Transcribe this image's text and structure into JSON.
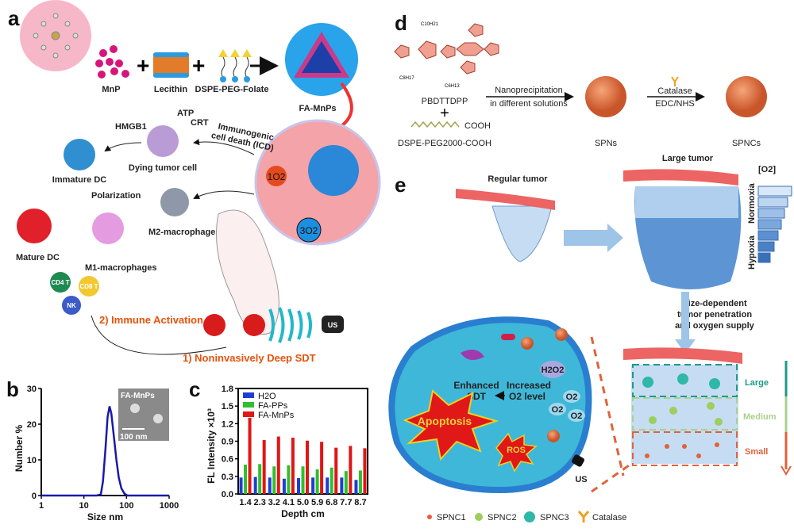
{
  "panels": {
    "a": {
      "label": "a",
      "components": [
        "MnP",
        "Lecithin",
        "DSPE-PEG-Folate"
      ],
      "product": "FA-MnPs",
      "cells": {
        "hmgb1": "HMGB1",
        "atp": "ATP",
        "crt": "CRT",
        "icd": [
          "Immunogenic",
          "cell death (ICD)"
        ],
        "dying": "Dying tumor cell",
        "immature_dc": "Immature DC",
        "polarization": "Polarization",
        "m2": "M2-macrophages",
        "mature_dc": "Mature DC",
        "m1": "M1-macrophages",
        "cd4": "CD4 T",
        "cd8": "CD8 T",
        "nk": "NK"
      },
      "singlet_oxygen": "1O2",
      "triplet_oxygen": "3O2",
      "us": "US",
      "step1": "1) Noninvasively Deep SDT",
      "step2": "2) Immune Activation"
    },
    "b": {
      "label": "b",
      "inset_label": "FA-MnPs",
      "scale_bar": "100 nm"
    },
    "c": {
      "label": "c"
    },
    "d": {
      "label": "d",
      "polymer": "PBDTTDPP",
      "plus": "+",
      "lipid": "DSPE-PEG2000-COOH",
      "cooh": "COOH",
      "step1": [
        "Nanoprecipitation",
        "in different solutions"
      ],
      "step2": [
        "Catalase",
        "EDC/NHS"
      ],
      "spns": "SPNs",
      "spncs": "SPNCs",
      "chem_labels": [
        "C8H17",
        "C10H21",
        "C6H13"
      ]
    },
    "e": {
      "label": "e",
      "regular": "Regular tumor",
      "large": "Large tumor",
      "o2": "[O2]",
      "normoxia": "Normoxia",
      "hypoxia": "Hypoxia",
      "size_dep": [
        "Size-dependent",
        "tumor penetration",
        "and oxygen supply"
      ],
      "zones": [
        "Large",
        "Medium",
        "Small"
      ],
      "h2o2": "H2O2",
      "increased": [
        "Increased",
        "O2 level"
      ],
      "enhanced": [
        "Enhanced",
        "SDT"
      ],
      "o2_bubble": "O2",
      "apoptosis": "Apoptosis",
      "ros": "ROS",
      "us": "US",
      "legend": [
        "SPNC1",
        "SPNC2",
        "SPNC3",
        "Catalase"
      ]
    }
  },
  "colors": {
    "blue_line": "#1a1aa8",
    "h2o": "#1f3fd0",
    "fa_pps": "#2fbf2f",
    "fa_mnps": "#e01515",
    "large": "#1e9a8a",
    "medium": "#a8d08d",
    "small": "#e0623a"
  },
  "chart_data": [
    {
      "type": "line",
      "title": "",
      "xlabel": "Size nm",
      "ylabel": "Number %",
      "xscale": "log",
      "xlim": [
        1,
        1000
      ],
      "ylim": [
        0,
        30
      ],
      "xticks": [
        "1",
        "10",
        "100",
        "1000"
      ],
      "yticks": [
        "0",
        "10",
        "20",
        "30"
      ],
      "x": [
        1,
        20,
        25,
        28,
        32,
        36,
        40,
        44,
        50,
        58,
        66,
        76,
        90,
        105,
        1000
      ],
      "y": [
        0,
        0,
        0.3,
        4,
        13,
        22,
        25,
        23,
        17,
        10,
        5,
        2,
        0.5,
        0,
        0
      ]
    },
    {
      "type": "bar",
      "title": "",
      "xlabel": "Depth cm",
      "ylabel": "FL Intensity ×10³",
      "ylim": [
        0,
        1.8
      ],
      "yticks": [
        "0.0",
        "0.3",
        "0.6",
        "0.9",
        "1.2",
        "1.5",
        "1.8"
      ],
      "legend": "top-left",
      "categories": [
        "1.4",
        "2.3",
        "3.2",
        "4.1",
        "5.0",
        "5.9",
        "6.8",
        "7.7",
        "8.7"
      ],
      "series": [
        {
          "name": "H2O",
          "values": [
            0.28,
            0.29,
            0.28,
            0.26,
            0.27,
            0.28,
            0.28,
            0.28,
            0.24
          ]
        },
        {
          "name": "FA-PPs",
          "values": [
            0.5,
            0.51,
            0.47,
            0.49,
            0.47,
            0.42,
            0.45,
            0.39,
            0.4
          ]
        },
        {
          "name": "FA-MnPs",
          "values": [
            1.3,
            0.92,
            0.98,
            0.96,
            0.91,
            0.89,
            0.79,
            0.82,
            0.78
          ]
        }
      ]
    }
  ]
}
